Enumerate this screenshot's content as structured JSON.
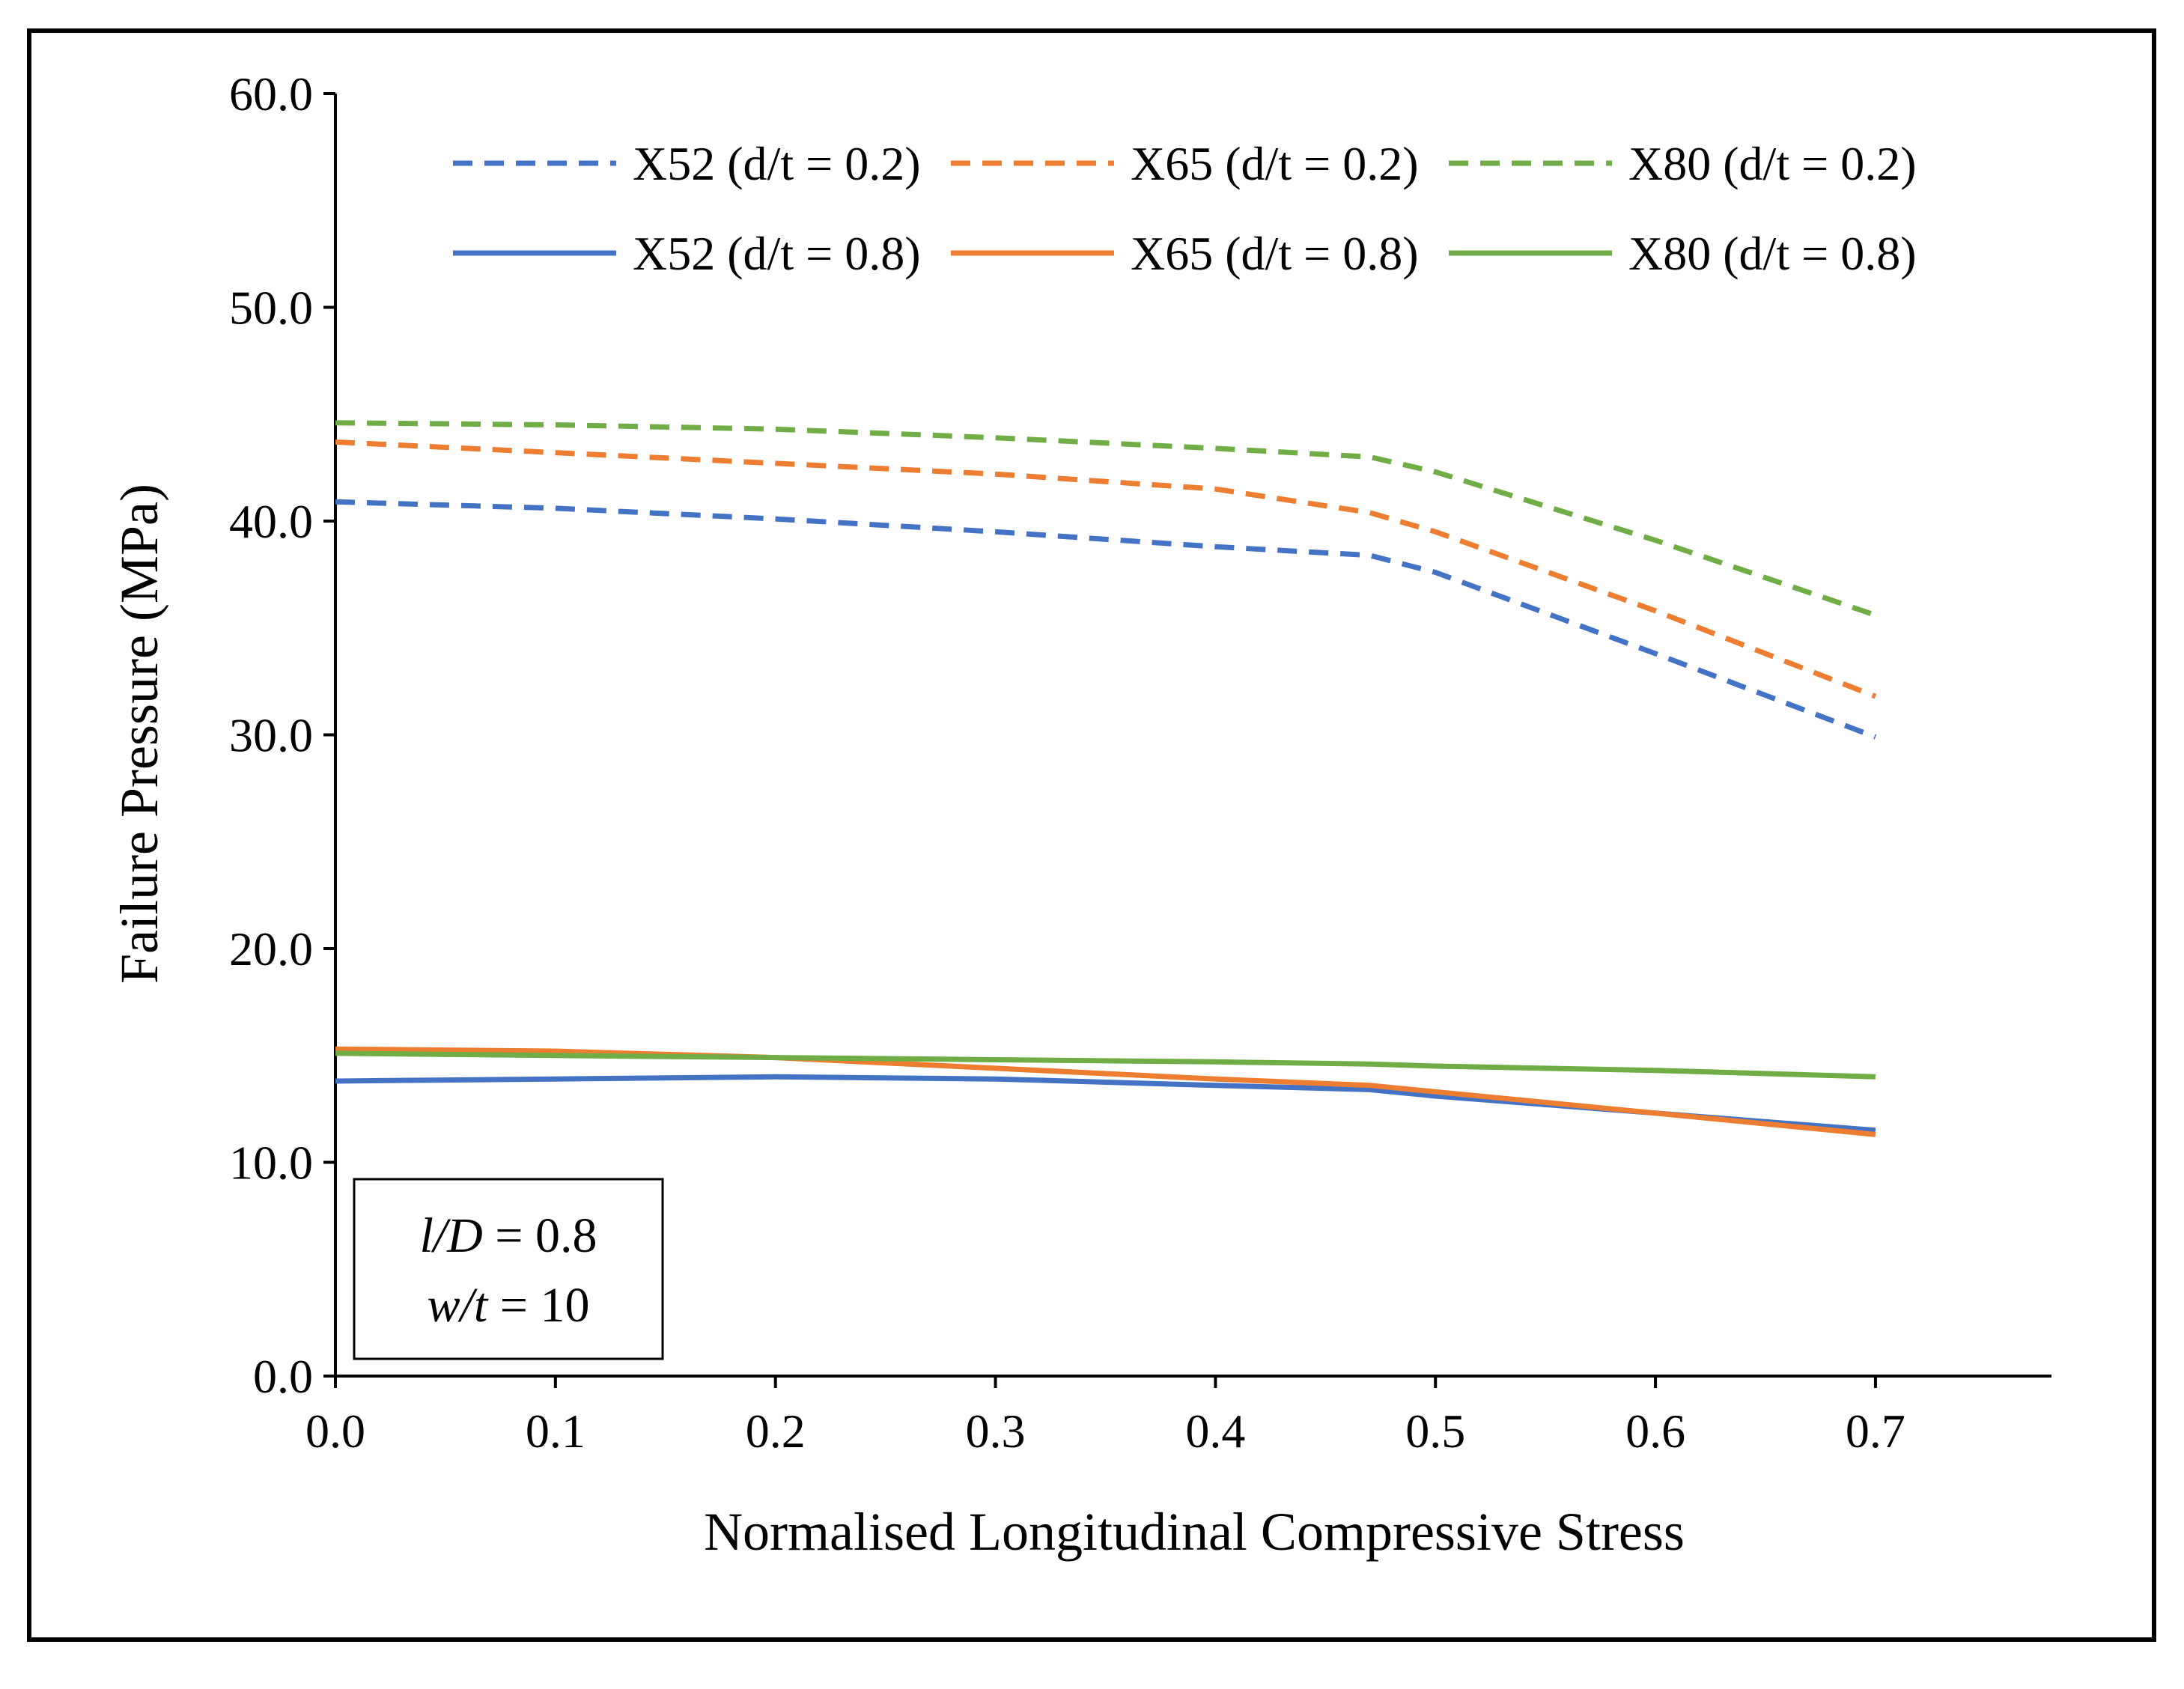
{
  "chart_data": {
    "type": "line",
    "title": "",
    "xlabel": "Normalised Longitudinal Compressive Stress",
    "ylabel": "Failure Pressure (MPa)",
    "xlim": [
      0.0,
      0.78
    ],
    "ylim": [
      0.0,
      60.0
    ],
    "xticks": [
      0.0,
      0.1,
      0.2,
      0.3,
      0.4,
      0.5,
      0.6,
      0.7
    ],
    "xtick_labels": [
      "0.0",
      "0.1",
      "0.2",
      "0.3",
      "0.4",
      "0.5",
      "0.6",
      "0.7"
    ],
    "yticks": [
      0,
      10,
      20,
      30,
      40,
      50,
      60
    ],
    "ytick_labels": [
      "0.0",
      "10.0",
      "20.0",
      "30.0",
      "40.0",
      "50.0",
      "60.0"
    ],
    "grid": false,
    "legend_position": "top",
    "x": [
      0.0,
      0.1,
      0.2,
      0.3,
      0.4,
      0.47,
      0.5,
      0.6,
      0.7
    ],
    "series": [
      {
        "name": "X52 (d/t = 0.2)",
        "color": "#4472C4",
        "style": "dashed",
        "values": [
          40.9,
          40.6,
          40.1,
          39.5,
          38.8,
          38.4,
          37.6,
          33.8,
          29.9
        ]
      },
      {
        "name": "X65 (d/t = 0.2)",
        "color": "#ED7D31",
        "style": "dashed",
        "values": [
          43.7,
          43.2,
          42.7,
          42.2,
          41.5,
          40.4,
          39.5,
          35.8,
          31.8
        ]
      },
      {
        "name": "X80 (d/t = 0.2)",
        "color": "#70AD47",
        "style": "dashed",
        "values": [
          44.6,
          44.5,
          44.3,
          43.9,
          43.4,
          43.0,
          42.3,
          39.1,
          35.6
        ]
      },
      {
        "name": "X52 (d/t = 0.8)",
        "color": "#4472C4",
        "style": "solid",
        "values": [
          13.8,
          13.9,
          14.0,
          13.9,
          13.6,
          13.4,
          13.1,
          12.3,
          11.5
        ]
      },
      {
        "name": "X65 (d/t = 0.8)",
        "color": "#ED7D31",
        "style": "solid",
        "values": [
          15.3,
          15.2,
          14.9,
          14.4,
          13.9,
          13.6,
          13.3,
          12.3,
          11.3
        ]
      },
      {
        "name": "X80 (d/t = 0.8)",
        "color": "#70AD47",
        "style": "solid",
        "values": [
          15.1,
          15.0,
          14.9,
          14.8,
          14.7,
          14.6,
          14.5,
          14.3,
          14.0
        ]
      }
    ],
    "annotation": {
      "line1_italic": "l/D",
      "line1_rest": " = 0.8",
      "line2_italic": "w/t",
      "line2_rest": " = 10"
    }
  }
}
